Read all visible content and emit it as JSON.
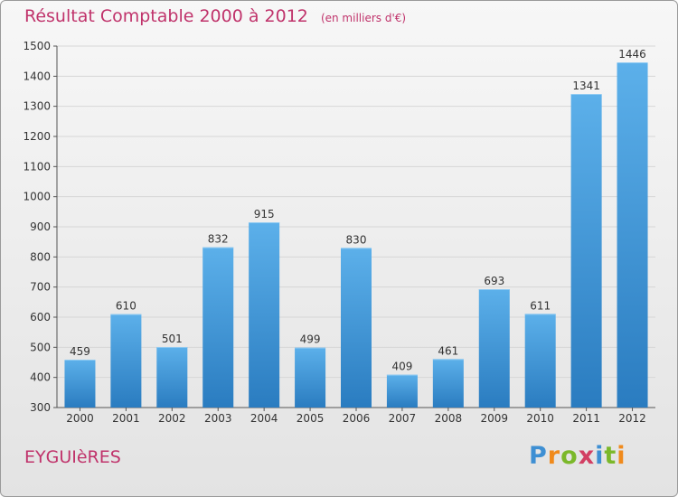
{
  "header": {
    "title": "Résultat Comptable 2000 à 2012",
    "subtitle": "(en milliers d'€)"
  },
  "footer": {
    "place": "EYGUIèRES",
    "logo": {
      "letters": [
        "P",
        "r",
        "o",
        "x",
        "i",
        "t",
        "i"
      ],
      "colors": [
        "#3e8fd3",
        "#f08a1c",
        "#7bb82a",
        "#d23f63",
        "#3e8fd3",
        "#7bb82a",
        "#f08a1c"
      ]
    }
  },
  "colors": {
    "bar_top": "#5cb0ea",
    "bar_bottom": "#2a7cc0",
    "accent": "#c0336b",
    "axis": "#555555"
  },
  "chart_data": {
    "type": "bar",
    "categories": [
      "2000",
      "2001",
      "2002",
      "2003",
      "2004",
      "2005",
      "2006",
      "2007",
      "2008",
      "2009",
      "2010",
      "2011",
      "2012"
    ],
    "values": [
      459,
      610,
      501,
      832,
      915,
      499,
      830,
      409,
      461,
      693,
      611,
      1341,
      1446
    ],
    "ylim": [
      300,
      1500
    ],
    "yticks": [
      300,
      400,
      500,
      600,
      700,
      800,
      900,
      1000,
      1100,
      1200,
      1300,
      1400,
      1500
    ],
    "grid": true,
    "data_labels": true
  }
}
